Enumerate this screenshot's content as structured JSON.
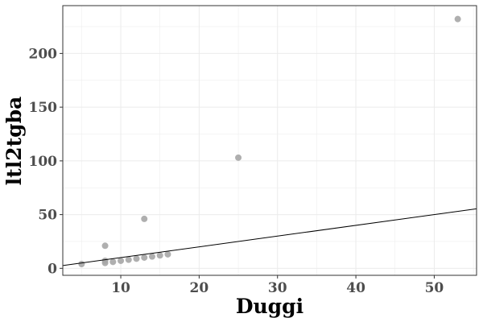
{
  "chart_data": {
    "type": "scatter",
    "xlabel": "Duggi",
    "ylabel": "ltl2tgba",
    "xlim": [
      2.6,
      55.4
    ],
    "ylim": [
      -6.5,
      244.5
    ],
    "x_ticks": [
      10,
      20,
      30,
      40,
      50
    ],
    "y_ticks": [
      0,
      50,
      100,
      150,
      200
    ],
    "grid": true,
    "point_color": "#a6a6a6",
    "line_color": "#000000",
    "grid_color": "#ebebeb",
    "reference_line": {
      "x": [
        2.6,
        55.4
      ],
      "y": [
        2.6,
        55.4
      ]
    },
    "points": [
      {
        "x": 5,
        "y": 4
      },
      {
        "x": 8,
        "y": 5
      },
      {
        "x": 8,
        "y": 7
      },
      {
        "x": 8,
        "y": 21
      },
      {
        "x": 9,
        "y": 6
      },
      {
        "x": 10,
        "y": 7
      },
      {
        "x": 11,
        "y": 8
      },
      {
        "x": 12,
        "y": 9
      },
      {
        "x": 13,
        "y": 10
      },
      {
        "x": 13,
        "y": 46
      },
      {
        "x": 14,
        "y": 11
      },
      {
        "x": 15,
        "y": 12
      },
      {
        "x": 16,
        "y": 13
      },
      {
        "x": 25,
        "y": 103
      },
      {
        "x": 53,
        "y": 232
      }
    ]
  }
}
